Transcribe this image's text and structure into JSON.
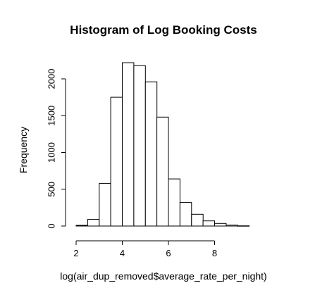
{
  "chart_data": {
    "type": "bar",
    "title": "Histogram of Log Booking Costs",
    "xlabel": "log(air_dup_removed$average_rate_per_night)",
    "ylabel": "Frequency",
    "xlim": [
      2,
      9.5
    ],
    "ylim": [
      0,
      2200
    ],
    "x_ticks": [
      2,
      4,
      6,
      8
    ],
    "y_ticks": [
      0,
      500,
      1000,
      1500,
      2000
    ],
    "bin_width": 0.5,
    "bins": [
      {
        "start": 2.0,
        "end": 2.5,
        "value": 10
      },
      {
        "start": 2.5,
        "end": 3.0,
        "value": 90
      },
      {
        "start": 3.0,
        "end": 3.5,
        "value": 580
      },
      {
        "start": 3.5,
        "end": 4.0,
        "value": 1750
      },
      {
        "start": 4.0,
        "end": 4.5,
        "value": 2220
      },
      {
        "start": 4.5,
        "end": 5.0,
        "value": 2180
      },
      {
        "start": 5.0,
        "end": 5.5,
        "value": 1960
      },
      {
        "start": 5.5,
        "end": 6.0,
        "value": 1480
      },
      {
        "start": 6.0,
        "end": 6.5,
        "value": 640
      },
      {
        "start": 6.5,
        "end": 7.0,
        "value": 320
      },
      {
        "start": 7.0,
        "end": 7.5,
        "value": 160
      },
      {
        "start": 7.5,
        "end": 8.0,
        "value": 70
      },
      {
        "start": 8.0,
        "end": 8.5,
        "value": 35
      },
      {
        "start": 8.5,
        "end": 9.0,
        "value": 12
      },
      {
        "start": 9.0,
        "end": 9.5,
        "value": 3
      }
    ]
  }
}
